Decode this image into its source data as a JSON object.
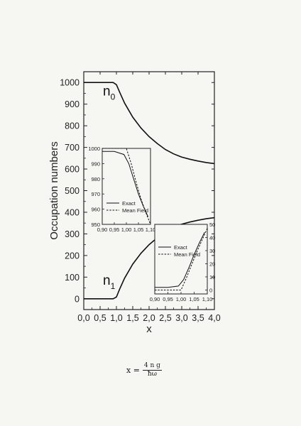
{
  "chart_data": [
    {
      "id": "main",
      "type": "line",
      "ylabel": "Occupation numbers",
      "xlabel": "x",
      "xlim": [
        0,
        4
      ],
      "ylim": [
        -50,
        1050
      ],
      "xticks": [
        "0,0",
        "0,5",
        "1,0",
        "1,5",
        "2,0",
        "2,5",
        "3,0",
        "3,5",
        "4,0"
      ],
      "yticks": [
        "0",
        "100",
        "200",
        "300",
        "400",
        "500",
        "600",
        "700",
        "800",
        "900",
        "1000"
      ],
      "annotations": [
        {
          "text": "n",
          "sub": "0",
          "x": 0.5,
          "y": 960
        },
        {
          "text": "n",
          "sub": "1",
          "x": 0.5,
          "y": 85
        }
      ],
      "series": [
        {
          "label": "n0",
          "x": [
            0.0,
            0.9,
            1.0,
            1.1,
            1.25,
            1.5,
            1.75,
            2.0,
            2.25,
            2.5,
            2.75,
            3.0,
            3.25,
            3.5,
            3.75,
            4.0
          ],
          "y": [
            1000,
            1000,
            990,
            955,
            905,
            840,
            790,
            750,
            718,
            690,
            670,
            655,
            645,
            637,
            630,
            625
          ]
        },
        {
          "label": "n1",
          "x": [
            0.0,
            0.9,
            1.0,
            1.1,
            1.25,
            1.5,
            1.75,
            2.0,
            2.25,
            2.5,
            2.75,
            3.0,
            3.25,
            3.5,
            3.75,
            4.0
          ],
          "y": [
            0,
            0,
            8,
            45,
            95,
            160,
            210,
            250,
            282,
            310,
            330,
            345,
            355,
            363,
            370,
            375
          ]
        }
      ]
    },
    {
      "id": "inset_top",
      "type": "line",
      "xlim": [
        0.9,
        1.1
      ],
      "ylim": [
        950,
        1000
      ],
      "xticks": [
        "0,90",
        "0,95",
        "1,00",
        "1,05",
        "1,10"
      ],
      "yticks": [
        "950",
        "960",
        "970",
        "980",
        "990",
        "1000"
      ],
      "legend": [
        "Exact",
        "Mean Field"
      ],
      "series": [
        {
          "name": "Exact",
          "x": [
            0.9,
            0.95,
            0.99,
            1.01,
            1.03,
            1.05,
            1.07,
            1.09
          ],
          "y": [
            998,
            998,
            996,
            990,
            980,
            970,
            962,
            955
          ]
        },
        {
          "name": "Mean Field",
          "x": [
            0.9,
            0.95,
            1.0,
            1.02,
            1.04,
            1.06,
            1.08,
            1.1
          ],
          "y": [
            1000,
            1000,
            1000,
            990,
            978,
            967,
            958,
            950
          ]
        }
      ]
    },
    {
      "id": "inset_bottom",
      "type": "line",
      "xlim": [
        0.9,
        1.1
      ],
      "ylim": [
        -3,
        50
      ],
      "xticks": [
        "0,90",
        "0,95",
        "1,00",
        "1,05",
        "1,10"
      ],
      "yticks": [
        "0",
        "10",
        "20",
        "30",
        "40",
        "50"
      ],
      "legend": [
        "Exact",
        "Mean Field"
      ],
      "series": [
        {
          "name": "Exact",
          "x": [
            0.9,
            0.95,
            0.99,
            1.01,
            1.03,
            1.05,
            1.07,
            1.09
          ],
          "y": [
            2,
            2,
            3,
            8,
            17,
            27,
            36,
            44
          ]
        },
        {
          "name": "Mean Field",
          "x": [
            0.9,
            0.95,
            1.0,
            1.02,
            1.04,
            1.06,
            1.08,
            1.1
          ],
          "y": [
            0,
            0,
            0,
            9,
            19,
            29,
            38,
            47
          ]
        }
      ]
    }
  ],
  "formula": {
    "lhs": "x =",
    "num": "4 n g",
    "den": "ħω"
  }
}
